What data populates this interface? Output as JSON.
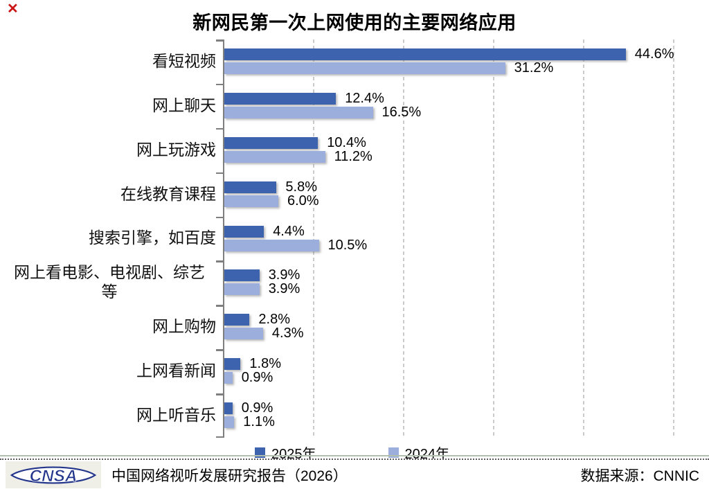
{
  "page": {
    "corner_mark": "✕"
  },
  "title": "新网民第一次上网使用的主要网络应用",
  "chart_data": {
    "type": "bar",
    "orientation": "horizontal",
    "title": "新网民第一次上网使用的主要网络应用",
    "categories": [
      "看短视频",
      "网上聊天",
      "网上玩游戏",
      "在线教育课程",
      "搜索引擎，如百度",
      "网上看电影、电视剧、综艺\n等",
      "网上购物",
      "上网看新闻",
      "网上听音乐"
    ],
    "series": [
      {
        "name": "2025年",
        "color": "#3d63ae",
        "values": [
          44.6,
          12.4,
          10.4,
          5.8,
          4.4,
          3.9,
          2.8,
          1.8,
          0.9
        ]
      },
      {
        "name": "2024年",
        "color": "#9baedc",
        "values": [
          31.2,
          16.5,
          11.2,
          6.0,
          10.5,
          3.9,
          4.3,
          0.9,
          1.1
        ]
      }
    ],
    "value_suffix": "%",
    "value_decimals": 1,
    "xlim": [
      0,
      53
    ],
    "gridline_interval": 10,
    "grid": "vertical-dashed",
    "axis_color": "#7f7f7f",
    "gridline_color": "#cbcbcb",
    "legend_position": "bottom",
    "data_labels": "outside-end"
  },
  "legend": {
    "items": [
      {
        "label": "2025年",
        "color": "#3d63ae"
      },
      {
        "label": "2024年",
        "color": "#9baedc"
      }
    ]
  },
  "footer": {
    "logo_text": "CNSA",
    "report_title": "中国网络视听发展研究报告（2026）",
    "source": "数据来源：CNNIC"
  }
}
